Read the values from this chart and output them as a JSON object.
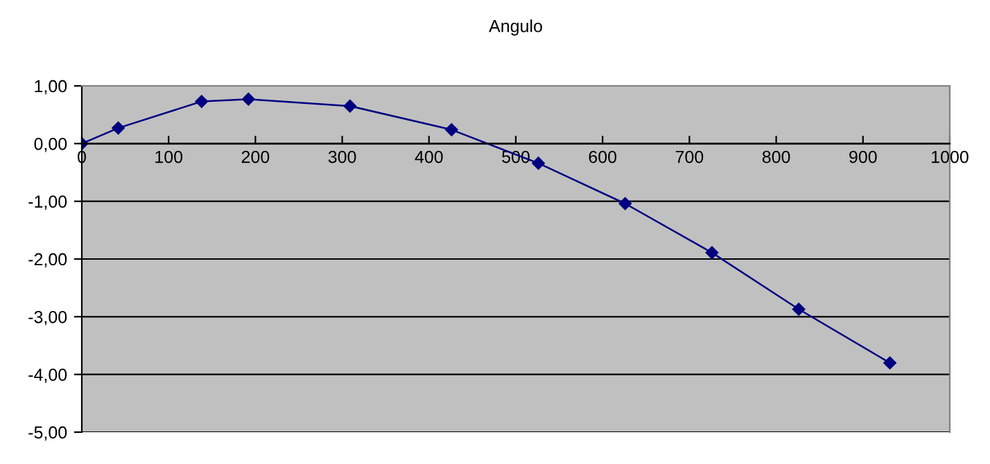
{
  "chart_data": {
    "type": "line",
    "title": "Angulo",
    "x": [
      0,
      42,
      138,
      192,
      309,
      426,
      526,
      626,
      726,
      826,
      931
    ],
    "series": [
      {
        "color": "#000080",
        "values": [
          0,
          0.27,
          0.73,
          0.77,
          0.65,
          0.24,
          -0.34,
          -1.04,
          -1.89,
          -2.87,
          -3.8
        ]
      }
    ],
    "xlim": [
      0,
      1000
    ],
    "xticks": [
      0,
      100,
      200,
      300,
      400,
      500,
      600,
      700,
      800,
      900,
      1000
    ],
    "ylim": [
      -5,
      1
    ],
    "yticks": [
      {
        "value": -5,
        "label": "-5,00"
      },
      {
        "value": -4,
        "label": "-4,00"
      },
      {
        "value": -3,
        "label": "-3,00"
      },
      {
        "value": -2,
        "label": "-2,00"
      },
      {
        "value": -1,
        "label": "-1,00"
      },
      {
        "value": 0,
        "label": "0,00"
      },
      {
        "value": 1,
        "label": "1,00"
      }
    ],
    "grid": "y",
    "marker": "diamond",
    "line_style": "solid",
    "legend": false
  }
}
